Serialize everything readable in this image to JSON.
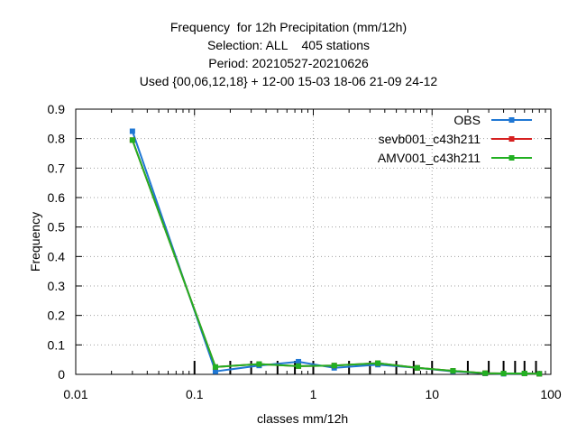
{
  "chart_data": {
    "type": "line",
    "title": [
      "Frequency  for 12h Precipitation (mm/12h)",
      "Selection: ALL    405 stations",
      "Period: 20210527-20210626",
      "Used {00,06,12,18} + 12-00 15-03 18-06 21-09 24-12"
    ],
    "xlabel": "classes mm/12h",
    "ylabel": "Frequency",
    "xscale": "log",
    "xlim": [
      0.01,
      100
    ],
    "ylim": [
      0,
      0.9
    ],
    "xticks": [
      "0.01",
      "0.1",
      "1",
      "10",
      "100"
    ],
    "yticks": [
      "0",
      "0.1",
      "0.2",
      "0.3",
      "0.4",
      "0.5",
      "0.6",
      "0.7",
      "0.8",
      "0.9"
    ],
    "grid": true,
    "legend_position": "top-right",
    "class_marks": [
      0.1,
      0.2,
      0.3,
      0.5,
      0.7,
      1,
      2,
      3,
      5,
      7,
      10,
      20,
      30,
      40,
      50,
      60,
      75
    ],
    "series": [
      {
        "name": "OBS",
        "color": "#1f77d4",
        "x": [
          0.03,
          0.15,
          0.35,
          0.75,
          1.5,
          3.5,
          7.5,
          15,
          28,
          40,
          60,
          80
        ],
        "y": [
          0.825,
          0.01,
          0.03,
          0.043,
          0.022,
          0.033,
          0.022,
          0.01,
          0.003,
          0.002,
          0.003,
          0.002
        ]
      },
      {
        "name": "sevb001_c43h211",
        "color": "#d62020",
        "x": [
          0.03,
          0.15,
          0.35,
          0.75,
          1.5,
          3.5,
          7.5,
          15,
          28,
          40,
          60,
          80
        ],
        "y": [
          0.795,
          0.025,
          0.035,
          0.028,
          0.03,
          0.038,
          0.022,
          0.012,
          0.004,
          0.003,
          0.003,
          0.002
        ]
      },
      {
        "name": "AMV001_c43h211",
        "color": "#22b022",
        "x": [
          0.03,
          0.15,
          0.35,
          0.75,
          1.5,
          3.5,
          7.5,
          15,
          28,
          40,
          60,
          80
        ],
        "y": [
          0.795,
          0.025,
          0.035,
          0.028,
          0.03,
          0.038,
          0.022,
          0.012,
          0.004,
          0.003,
          0.003,
          0.002
        ]
      }
    ]
  }
}
